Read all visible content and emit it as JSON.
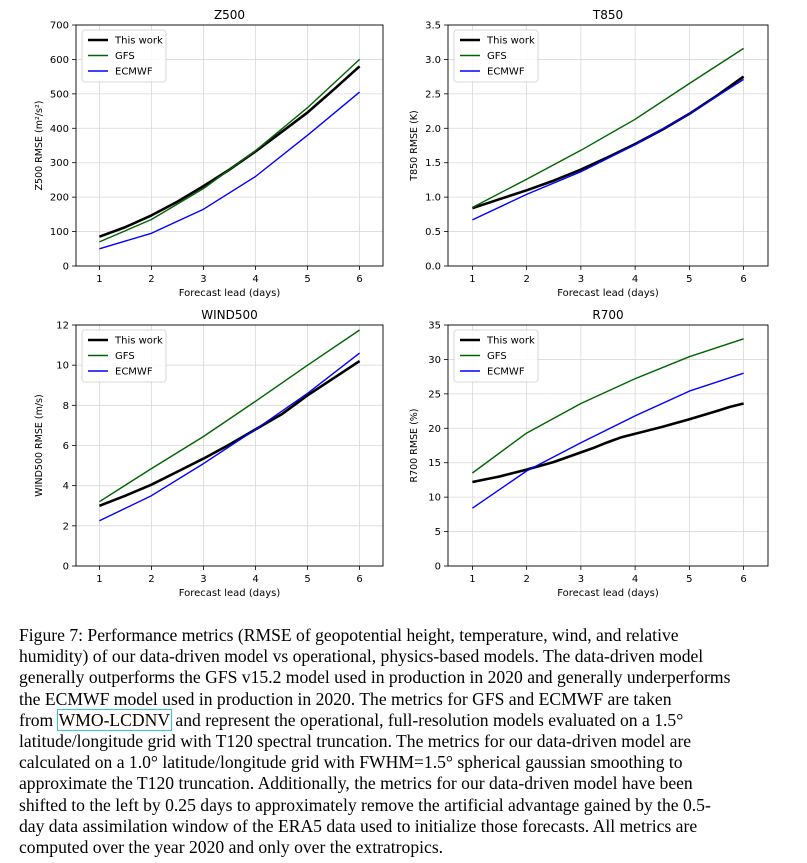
{
  "figure": {
    "chart_data": [
      {
        "type": "line",
        "title": "Z500",
        "xlabel": "Forecast lead (days)",
        "ylabel": "Z500 RMSE (m²/s²)",
        "xlim": [
          0.55,
          6.45
        ],
        "ylim": [
          0,
          700
        ],
        "xticks": [
          1,
          2,
          3,
          4,
          5,
          6
        ],
        "yticks": [
          0,
          100,
          200,
          300,
          400,
          500,
          600,
          700
        ],
        "grid": true,
        "legend": "top-left",
        "series": [
          {
            "name": "This work",
            "color": "#000000",
            "x": [
              1,
              1.5,
              2,
              2.5,
              3,
              3.5,
              4,
              4.5,
              5,
              5.5,
              6
            ],
            "y": [
              85,
              113,
              147,
              187,
              232,
              280,
              333,
              389,
              446,
              512,
              580
            ]
          },
          {
            "name": "GFS",
            "color": "#006400",
            "x": [
              1,
              2,
              3,
              4,
              5,
              6
            ],
            "y": [
              70,
              135,
              225,
              335,
              460,
              600
            ]
          },
          {
            "name": "ECMWF",
            "color": "#0000ff",
            "x": [
              1,
              2,
              3,
              4,
              5,
              6
            ],
            "y": [
              50,
              95,
              165,
              260,
              380,
              505
            ]
          }
        ]
      },
      {
        "type": "line",
        "title": "T850",
        "xlabel": "Forecast lead (days)",
        "ylabel": "T850 RMSE (K)",
        "xlim": [
          0.55,
          6.45
        ],
        "ylim": [
          0,
          3.5
        ],
        "xticks": [
          1,
          2,
          3,
          4,
          5,
          6
        ],
        "yticks": [
          "0.0",
          "0.5",
          "1.0",
          "1.5",
          "2.0",
          "2.5",
          "3.0",
          "3.5"
        ],
        "grid": true,
        "legend": "top-left",
        "series": [
          {
            "name": "This work",
            "color": "#000000",
            "x": [
              1,
              1.5,
              2,
              2.5,
              3,
              3.5,
              4,
              4.5,
              5,
              5.5,
              6
            ],
            "y": [
              0.84,
              0.97,
              1.1,
              1.24,
              1.4,
              1.58,
              1.77,
              1.98,
              2.21,
              2.47,
              2.75
            ]
          },
          {
            "name": "GFS",
            "color": "#006400",
            "x": [
              1,
              2,
              3,
              4,
              5,
              6
            ],
            "y": [
              0.85,
              1.26,
              1.68,
              2.13,
              2.65,
              3.16
            ]
          },
          {
            "name": "ECMWF",
            "color": "#0000ff",
            "x": [
              1,
              2,
              3,
              4,
              5,
              6
            ],
            "y": [
              0.67,
              1.04,
              1.37,
              1.76,
              2.21,
              2.71
            ]
          }
        ]
      },
      {
        "type": "line",
        "title": "WIND500",
        "xlabel": "Forecast lead (days)",
        "ylabel": "WIND500 RMSE (m/s)",
        "xlim": [
          0.55,
          6.45
        ],
        "ylim": [
          0,
          12
        ],
        "xticks": [
          1,
          2,
          3,
          4,
          5,
          6
        ],
        "yticks": [
          0,
          2,
          4,
          6,
          8,
          10,
          12
        ],
        "grid": true,
        "legend": "top-left",
        "series": [
          {
            "name": "This work",
            "color": "#000000",
            "x": [
              1,
              1.5,
              2,
              2.5,
              3,
              3.5,
              4,
              4.5,
              5,
              5.5,
              6
            ],
            "y": [
              3.0,
              3.5,
              4.05,
              4.7,
              5.35,
              6.05,
              6.8,
              7.55,
              8.5,
              9.35,
              10.2
            ]
          },
          {
            "name": "GFS",
            "color": "#006400",
            "x": [
              1,
              2,
              3,
              4,
              5,
              6
            ],
            "y": [
              3.2,
              4.85,
              6.45,
              8.2,
              10.0,
              11.75
            ]
          },
          {
            "name": "ECMWF",
            "color": "#0000ff",
            "x": [
              1,
              2,
              3,
              4,
              5,
              6
            ],
            "y": [
              2.25,
              3.5,
              5.1,
              6.8,
              8.6,
              10.6
            ]
          }
        ]
      },
      {
        "type": "line",
        "title": "R700",
        "xlabel": "Forecast lead (days)",
        "ylabel": "R700 RMSE (%)",
        "xlim": [
          0.55,
          6.45
        ],
        "ylim": [
          0,
          35
        ],
        "xticks": [
          1,
          2,
          3,
          4,
          5,
          6
        ],
        "yticks": [
          0,
          5,
          10,
          15,
          20,
          25,
          30,
          35
        ],
        "grid": true,
        "legend": "top-left",
        "series": [
          {
            "name": "This work",
            "color": "#000000",
            "x": [
              1,
              1.5,
              2,
              2.5,
              3,
              3.25,
              3.5,
              3.75,
              4,
              4.5,
              5,
              5.5,
              5.75,
              6
            ],
            "y": [
              12.2,
              13.0,
              14.0,
              15.1,
              16.5,
              17.2,
              18.0,
              18.7,
              19.2,
              20.2,
              21.3,
              22.5,
              23.1,
              23.6
            ]
          },
          {
            "name": "GFS",
            "color": "#006400",
            "x": [
              1,
              2,
              3,
              4,
              5,
              6
            ],
            "y": [
              13.5,
              19.3,
              23.6,
              27.2,
              30.4,
              33.0
            ]
          },
          {
            "name": "ECMWF",
            "color": "#0000ff",
            "x": [
              1,
              2,
              3,
              4,
              5,
              6
            ],
            "y": [
              8.4,
              13.8,
              17.9,
              21.8,
              25.4,
              28.0
            ]
          }
        ]
      }
    ]
  },
  "caption": {
    "lines": [
      "Figure 7: Performance metrics (RMSE of geopotential height, temperature, wind, and relative",
      "humidity) of our data-driven model vs operational, physics-based models. The data-driven model",
      "generally outperforms the GFS v15.2 model used in production in 2020 and generally underperforms",
      "the ECMWF model used in production in 2020.  The metrics for GFS and ECMWF are taken"
    ],
    "cite_prefix": "from ",
    "citation": "WMO-LCDNV",
    "cite_suffix": " and represent the operational, full-resolution models evaluated on a 1.5°",
    "lines_after": [
      "latitude/longitude grid with T120 spectral truncation.  The metrics for our data-driven model are",
      "calculated on a 1.0° latitude/longitude grid with FWHM=1.5° spherical gaussian smoothing to",
      "approximate the T120 truncation.  Additionally, the metrics for our data-driven model have been",
      "shifted to the left by 0.25 days to approximately remove the artificial advantage gained by the 0.5-",
      "day data assimilation window of the ERA5 data used to initialize those forecasts. All metrics are",
      "computed over the year 2020 and only over the extratropics."
    ]
  }
}
